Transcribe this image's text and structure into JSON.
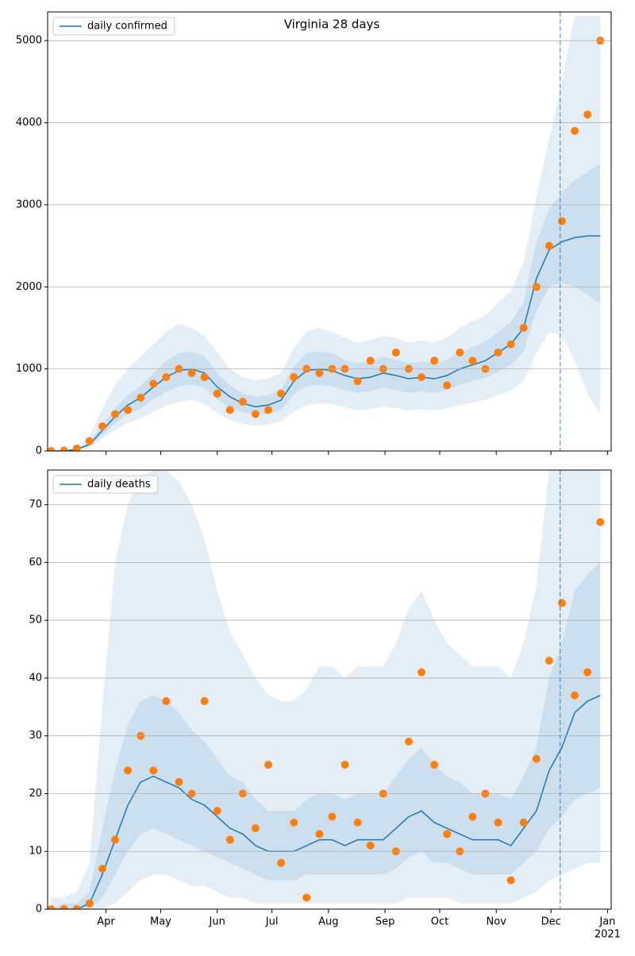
{
  "chart_data": [
    {
      "type": "line",
      "title": "Virginia 28 days",
      "x": [
        62,
        69,
        76,
        83,
        90,
        97,
        104,
        111,
        118,
        125,
        132,
        139,
        146,
        153,
        160,
        167,
        174,
        181,
        188,
        195,
        202,
        209,
        216,
        223,
        230,
        237,
        244,
        251,
        258,
        265,
        272,
        279,
        286,
        293,
        300,
        307,
        314,
        321,
        328,
        335,
        342,
        349,
        356,
        363
      ],
      "xlim": [
        60,
        369
      ],
      "ylim": [
        0,
        5350
      ],
      "yticks": [
        0,
        1000,
        2000,
        3000,
        4000,
        5000
      ],
      "grid": true,
      "legend": "upper left",
      "forecast_start": 341,
      "bands": [
        {
          "color": "#1f77b4",
          "lower": [
            0,
            0,
            5,
            40,
            150,
            260,
            340,
            400,
            480,
            550,
            600,
            620,
            580,
            460,
            380,
            330,
            310,
            320,
            360,
            480,
            560,
            580,
            570,
            530,
            500,
            510,
            540,
            520,
            500,
            510,
            500,
            520,
            560,
            590,
            620,
            680,
            740,
            850,
            1200,
            1450,
            1400,
            1100,
            700,
            450
          ],
          "upper": [
            2,
            10,
            50,
            180,
            520,
            800,
            1000,
            1150,
            1300,
            1450,
            1550,
            1500,
            1400,
            1200,
            1000,
            900,
            860,
            880,
            950,
            1250,
            1450,
            1500,
            1450,
            1380,
            1320,
            1350,
            1400,
            1380,
            1320,
            1350,
            1320,
            1380,
            1500,
            1580,
            1650,
            1800,
            1950,
            2300,
            3100,
            3800,
            4500,
            5300,
            5300,
            5300
          ]
        },
        {
          "color": "#1f77b4",
          "lower": [
            0,
            1,
            12,
            60,
            200,
            340,
            450,
            520,
            630,
            720,
            790,
            810,
            770,
            630,
            530,
            470,
            440,
            450,
            500,
            690,
            790,
            810,
            790,
            740,
            710,
            730,
            770,
            745,
            710,
            730,
            710,
            745,
            810,
            850,
            890,
            970,
            1050,
            1210,
            1700,
            2000,
            2050,
            2000,
            1900,
            1800
          ],
          "upper": [
            1,
            4,
            30,
            110,
            320,
            520,
            680,
            790,
            950,
            1100,
            1190,
            1210,
            1150,
            950,
            800,
            700,
            660,
            680,
            750,
            1030,
            1190,
            1210,
            1190,
            1110,
            1070,
            1090,
            1150,
            1110,
            1070,
            1090,
            1070,
            1110,
            1210,
            1270,
            1330,
            1450,
            1570,
            1810,
            2550,
            2950,
            3150,
            3300,
            3400,
            3500
          ]
        }
      ],
      "series": [
        {
          "name": "daily confirmed",
          "color": "#1f77b4",
          "values": [
            0,
            2,
            20,
            80,
            250,
            420,
            560,
            650,
            780,
            900,
            980,
            1000,
            950,
            780,
            660,
            580,
            540,
            560,
            620,
            850,
            980,
            1000,
            980,
            920,
            880,
            900,
            950,
            920,
            880,
            900,
            880,
            920,
            1000,
            1050,
            1100,
            1200,
            1300,
            1500,
            2100,
            2450,
            2550,
            2600,
            2620,
            2620
          ]
        }
      ],
      "points": {
        "color": "#ff7f0e",
        "values": [
          0,
          5,
          30,
          120,
          300,
          450,
          500,
          650,
          820,
          900,
          1000,
          950,
          900,
          700,
          500,
          600,
          450,
          500,
          700,
          900,
          1000,
          950,
          1000,
          1000,
          850,
          1100,
          1000,
          1200,
          1000,
          900,
          1100,
          800,
          1200,
          1100,
          1000,
          1200,
          1300,
          1500,
          2000,
          2500,
          2800,
          3900,
          4100,
          5000
        ]
      }
    },
    {
      "type": "line",
      "x": [
        62,
        69,
        76,
        83,
        90,
        97,
        104,
        111,
        118,
        125,
        132,
        139,
        146,
        153,
        160,
        167,
        174,
        181,
        188,
        195,
        202,
        209,
        216,
        223,
        230,
        237,
        244,
        251,
        258,
        265,
        272,
        279,
        286,
        293,
        300,
        307,
        314,
        321,
        328,
        335,
        342,
        349,
        356,
        363
      ],
      "xlim": [
        60,
        369
      ],
      "ylim": [
        0,
        76
      ],
      "yticks": [
        0,
        10,
        20,
        30,
        40,
        50,
        60,
        70
      ],
      "grid": true,
      "legend": "upper left",
      "xticks": [
        {
          "value": 92,
          "label": "Apr"
        },
        {
          "value": 122,
          "label": "May"
        },
        {
          "value": 153,
          "label": "Jun"
        },
        {
          "value": 183,
          "label": "Jul"
        },
        {
          "value": 214,
          "label": "Aug"
        },
        {
          "value": 245,
          "label": "Sep"
        },
        {
          "value": 275,
          "label": "Oct"
        },
        {
          "value": 306,
          "label": "Nov"
        },
        {
          "value": 336,
          "label": "Dec"
        },
        {
          "value": 367,
          "label": "Jan"
        }
      ],
      "x_sublabel": "2021",
      "forecast_start": 341,
      "bands": [
        {
          "color": "#1f77b4",
          "lower": [
            0,
            0,
            0,
            0,
            0,
            1,
            3,
            5,
            6,
            6,
            5,
            4,
            4,
            3,
            2,
            2,
            1,
            1,
            1,
            1,
            1,
            1,
            1,
            1,
            1,
            1,
            1,
            1,
            2,
            2,
            2,
            2,
            1,
            1,
            1,
            1,
            1,
            2,
            3,
            5,
            6,
            7,
            8,
            8
          ],
          "upper": [
            2,
            2,
            3,
            8,
            35,
            60,
            70,
            75,
            76,
            76,
            74,
            70,
            64,
            55,
            48,
            44,
            40,
            37,
            36,
            36,
            38,
            42,
            42,
            40,
            42,
            42,
            42,
            46,
            52,
            55,
            50,
            46,
            44,
            42,
            42,
            42,
            40,
            46,
            56,
            76,
            76,
            76,
            76,
            76
          ]
        },
        {
          "color": "#1f77b4",
          "lower": [
            0,
            0,
            0,
            0,
            2,
            6,
            10,
            13,
            14,
            13,
            12,
            11,
            10,
            9,
            8,
            7,
            6,
            5,
            5,
            5,
            6,
            6,
            6,
            6,
            6,
            6,
            6,
            7,
            9,
            10,
            8,
            8,
            7,
            6,
            6,
            6,
            6,
            8,
            10,
            14,
            16,
            19,
            20,
            21
          ],
          "upper": [
            0,
            1,
            1,
            3,
            14,
            24,
            32,
            36,
            37,
            36,
            34,
            31,
            29,
            26,
            23,
            22,
            19,
            17,
            17,
            17,
            19,
            20,
            20,
            19,
            20,
            20,
            20,
            23,
            26,
            28,
            25,
            23,
            22,
            20,
            20,
            20,
            19,
            23,
            28,
            40,
            46,
            55,
            58,
            60
          ]
        }
      ],
      "series": [
        {
          "name": "daily deaths",
          "color": "#1f77b4",
          "values": [
            0,
            0,
            0,
            1,
            6,
            12,
            18,
            22,
            23,
            22,
            21,
            19,
            18,
            16,
            14,
            13,
            11,
            10,
            10,
            10,
            11,
            12,
            12,
            11,
            12,
            12,
            12,
            14,
            16,
            17,
            15,
            14,
            13,
            12,
            12,
            12,
            11,
            14,
            17,
            24,
            28,
            34,
            36,
            37
          ]
        }
      ],
      "points": {
        "color": "#ff7f0e",
        "values": [
          0,
          0,
          0,
          1,
          7,
          12,
          24,
          30,
          24,
          36,
          22,
          20,
          36,
          17,
          12,
          20,
          14,
          25,
          8,
          15,
          2,
          13,
          16,
          25,
          15,
          11,
          20,
          10,
          29,
          41,
          25,
          13,
          10,
          16,
          20,
          15,
          5,
          15,
          26,
          43,
          53,
          37,
          41,
          67
        ]
      }
    }
  ]
}
